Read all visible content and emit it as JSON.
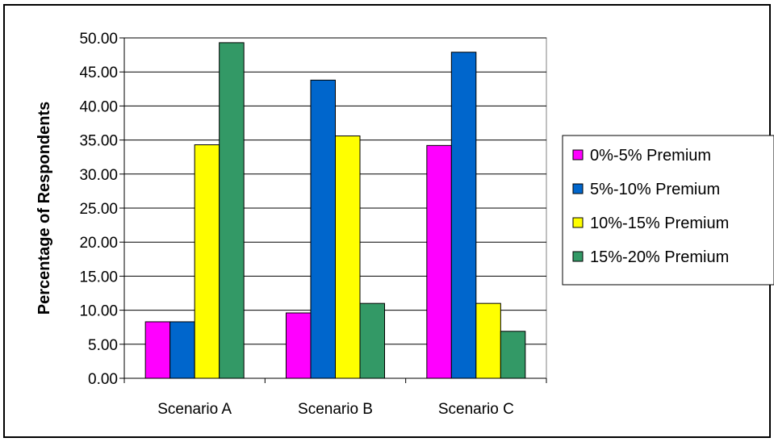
{
  "chart_data": {
    "type": "bar",
    "title": "",
    "xlabel": "",
    "ylabel": "Percentage of Respondents",
    "ylim": [
      0,
      50
    ],
    "ytick_step": 5,
    "ytick_labels": [
      "0.00",
      "5.00",
      "10.00",
      "15.00",
      "20.00",
      "25.00",
      "30.00",
      "35.00",
      "40.00",
      "45.00",
      "50.00"
    ],
    "categories": [
      "Scenario A",
      "Scenario B",
      "Scenario C"
    ],
    "series": [
      {
        "name": "0%-5% Premium",
        "color": "#FF00FF",
        "values": [
          8.3,
          9.6,
          34.2
        ]
      },
      {
        "name": "5%-10% Premium",
        "color": "#0066CC",
        "values": [
          8.3,
          43.8,
          47.9
        ]
      },
      {
        "name": "10%-15% Premium",
        "color": "#FFFF00",
        "values": [
          34.3,
          35.6,
          11.0
        ]
      },
      {
        "name": "15%-20% Premium",
        "color": "#339966",
        "values": [
          49.3,
          11.0,
          6.9
        ]
      }
    ],
    "grid": true,
    "legend_position": "right"
  }
}
